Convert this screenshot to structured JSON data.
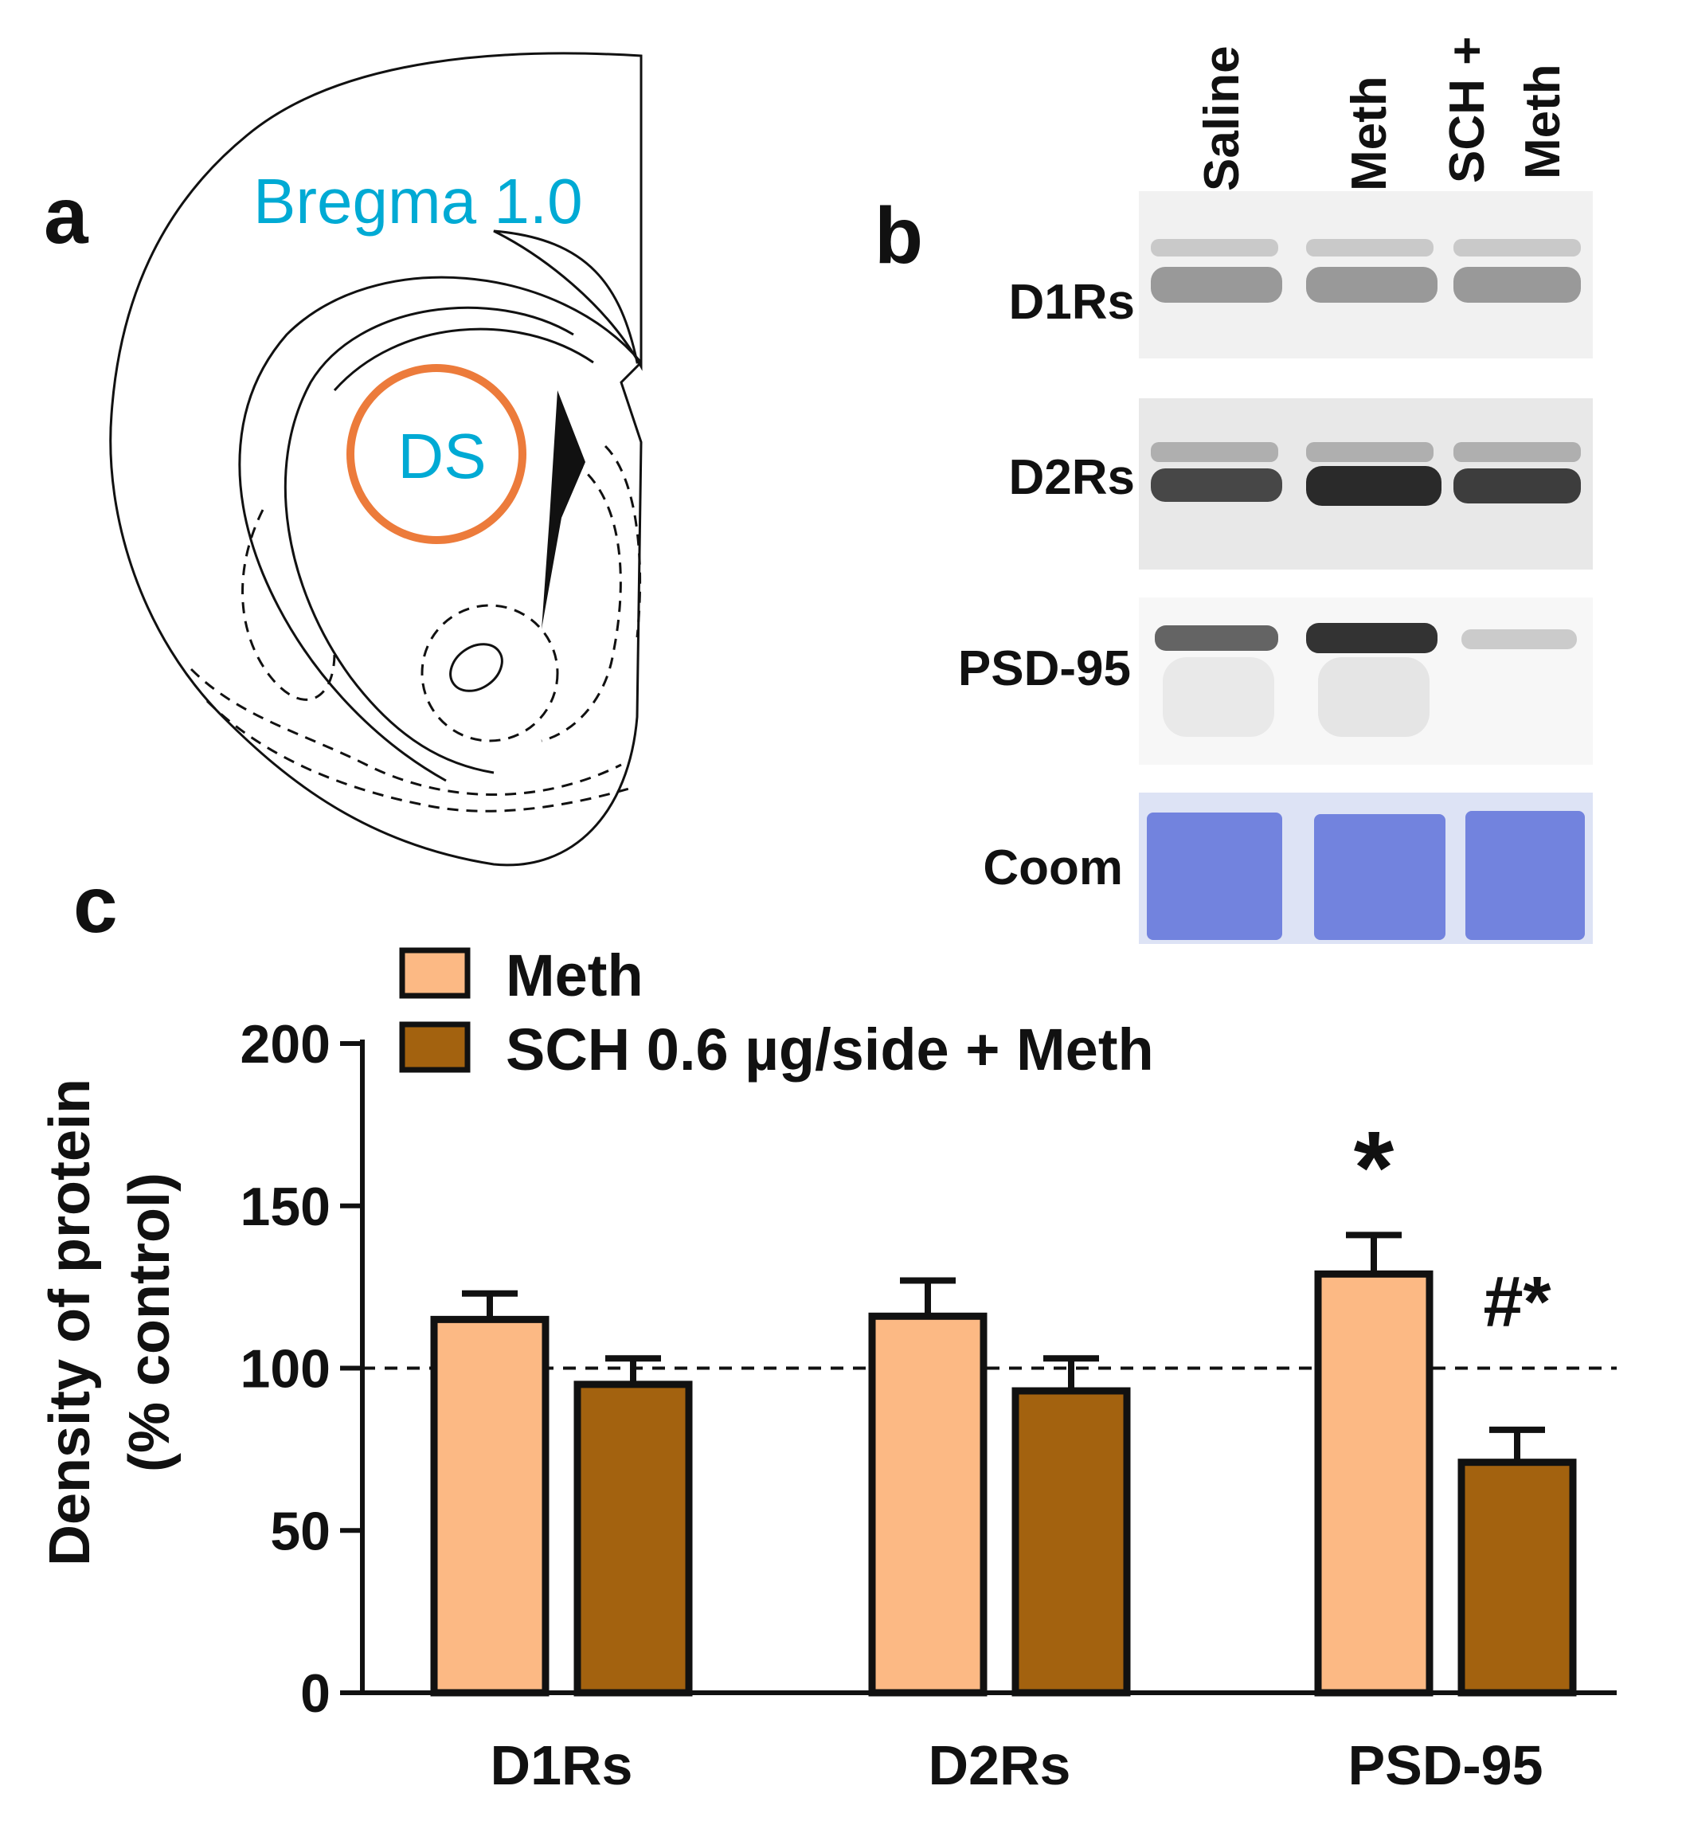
{
  "panels": {
    "a": "a",
    "b": "b",
    "c": "c"
  },
  "atlas": {
    "bregma_label": "Bregma 1.0",
    "region_label": "DS",
    "circle_color": "#ec7b3b",
    "label_color": "#00aad4"
  },
  "blot": {
    "lanes": [
      "Saline",
      "Meth",
      "SCH +",
      "Meth"
    ],
    "rows": [
      "D1Rs",
      "D2Rs",
      "PSD-95",
      "Coom"
    ],
    "coom_color": "#5f72d9"
  },
  "chart_data": {
    "type": "bar",
    "categories": [
      "D1Rs",
      "D2Rs",
      "PSD-95"
    ],
    "series": [
      {
        "name": "Meth",
        "values": [
          115,
          116,
          129
        ],
        "errors": [
          8,
          11,
          12
        ],
        "color": "#fcb984"
      },
      {
        "name": "SCH 0.6 µg/side + Meth",
        "values": [
          95,
          93,
          71
        ],
        "errors": [
          8,
          10,
          10
        ],
        "color": "#a3620f"
      }
    ],
    "ylabel_line1": "Density of protein",
    "ylabel_line2": "(% control)",
    "xlabel": "",
    "ylim": [
      0,
      200
    ],
    "yticks": [
      0,
      50,
      100,
      150,
      200
    ],
    "reference_line": 100,
    "legend_position": "top-left",
    "annotations": [
      {
        "category": "PSD-95",
        "series": "Meth",
        "text": "*"
      },
      {
        "category": "PSD-95",
        "series": "SCH 0.6 µg/side + Meth",
        "text": "#*"
      }
    ]
  }
}
